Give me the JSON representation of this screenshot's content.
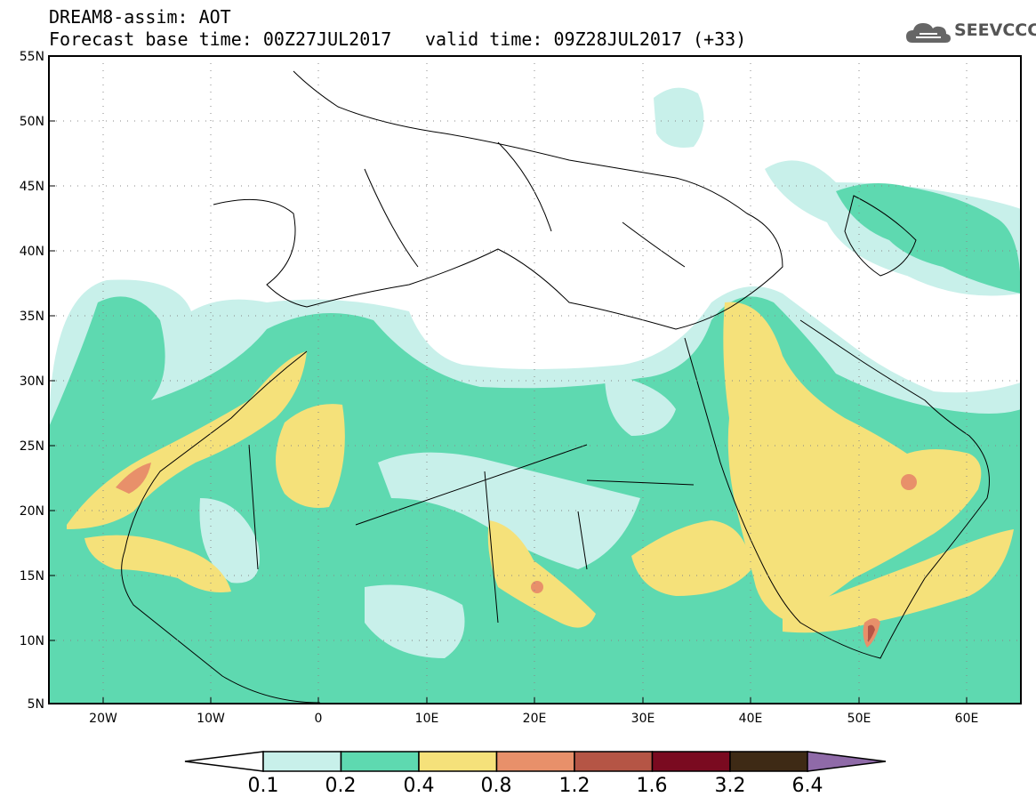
{
  "header": {
    "line1": "DREAM8-assim: AOT",
    "line2": "Forecast base time: 00Z27JUL2017",
    "line3": "valid time: 09Z28JUL2017 (+33)"
  },
  "logo": {
    "text": "SEEVCCC",
    "icon": "cloud-icon"
  },
  "map": {
    "lon_range": [
      -25,
      65
    ],
    "lat_range": [
      5,
      55
    ],
    "lat_labels": [
      "55N",
      "50N",
      "45N",
      "40N",
      "35N",
      "30N",
      "25N",
      "20N",
      "15N",
      "10N",
      "5N"
    ],
    "lon_labels": [
      "20W",
      "10W",
      "0",
      "10E",
      "20E",
      "30E",
      "40E",
      "50E",
      "60E"
    ],
    "grid": "dotted"
  },
  "colorbar": {
    "labels": [
      "0.1",
      "0.2",
      "0.4",
      "0.8",
      "1.2",
      "1.6",
      "3.2",
      "6.4"
    ],
    "colors": [
      "#c8f0ea",
      "#5ed9b0",
      "#f5e17a",
      "#e8906a",
      "#b55545",
      "#7a0a20",
      "#3e2a15"
    ],
    "over_color": "#8f6aa8",
    "under_color": "#ffffff"
  }
}
